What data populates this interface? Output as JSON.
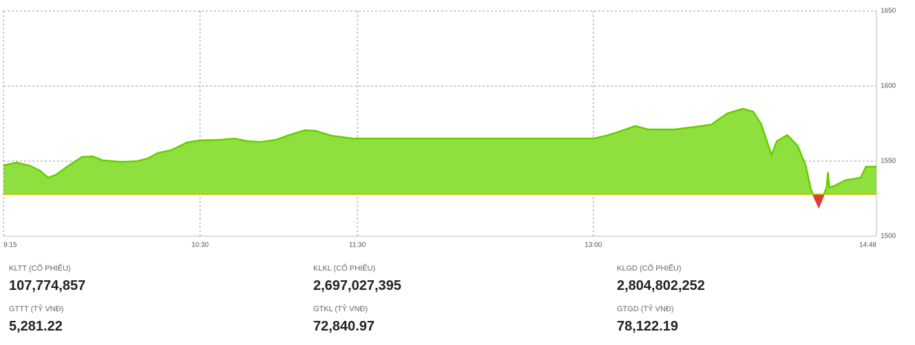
{
  "chart_data": {
    "type": "area",
    "x": [
      555,
      560,
      565,
      569,
      572,
      575,
      580,
      585,
      589,
      593,
      600,
      606,
      610,
      614,
      619,
      625,
      630,
      638,
      643,
      648,
      653,
      659,
      664,
      670,
      674,
      680,
      688,
      780,
      785,
      790,
      796,
      801,
      811,
      819,
      825,
      831,
      837,
      841,
      844,
      848,
      850,
      854,
      858,
      861,
      863,
      866,
      869,
      869.5,
      870,
      872,
      876,
      882,
      884,
      888
    ],
    "series": [
      {
        "color": "#66cc00",
        "values": [
          1547.2,
          1549,
          1547,
          1543.6,
          1539,
          1540.8,
          1547.2,
          1552.8,
          1553.2,
          1550.5,
          1549.5,
          1550,
          1551.8,
          1555.5,
          1557.3,
          1562.4,
          1563.8,
          1564.2,
          1565.1,
          1563.3,
          1562.8,
          1564.2,
          1567.4,
          1570.6,
          1570.2,
          1567,
          1565.1,
          1565.1,
          1567,
          1569.7,
          1573.4,
          1571.1,
          1571.1,
          1572.9,
          1574.3,
          1581.7,
          1584.9,
          1583,
          1574.8,
          1554.1,
          1563.3,
          1567.4,
          1560.1,
          1547.2,
          1531.2,
          1519.7,
          1532.6,
          1542.7,
          1532.6,
          1533.5,
          1537.2,
          1539,
          1546.3,
          1546.3
        ]
      }
    ],
    "baseline": 1528,
    "below_color": "#e53935",
    "baseline_color": "#c9c400",
    "xlim": [
      555,
      888
    ],
    "xticks": [
      {
        "value": 555,
        "label": "9:15"
      },
      {
        "value": 630,
        "label": "10:30"
      },
      {
        "value": 690,
        "label": "11:30"
      },
      {
        "value": 780,
        "label": "13:00"
      },
      {
        "value": 888,
        "label": "14:48"
      }
    ],
    "ylim": [
      1500,
      1650
    ],
    "yticks": [
      1500,
      1550,
      1600,
      1650
    ],
    "grid": true
  },
  "stats": [
    {
      "label": "KLTT (CỔ PHIẾU)",
      "value": "107,774,857"
    },
    {
      "label": "KLKL (CỔ PHIẾU)",
      "value": "2,697,027,395"
    },
    {
      "label": "KLGD (CỔ PHIẾU)",
      "value": "2,804,802,252"
    },
    {
      "label": "GTTT (TỶ VNĐ)",
      "value": "5,281.22"
    },
    {
      "label": "GTKL (TỶ VNĐ)",
      "value": "72,840.97"
    },
    {
      "label": "GTGD (TỶ VNĐ)",
      "value": "78,122.19"
    }
  ]
}
